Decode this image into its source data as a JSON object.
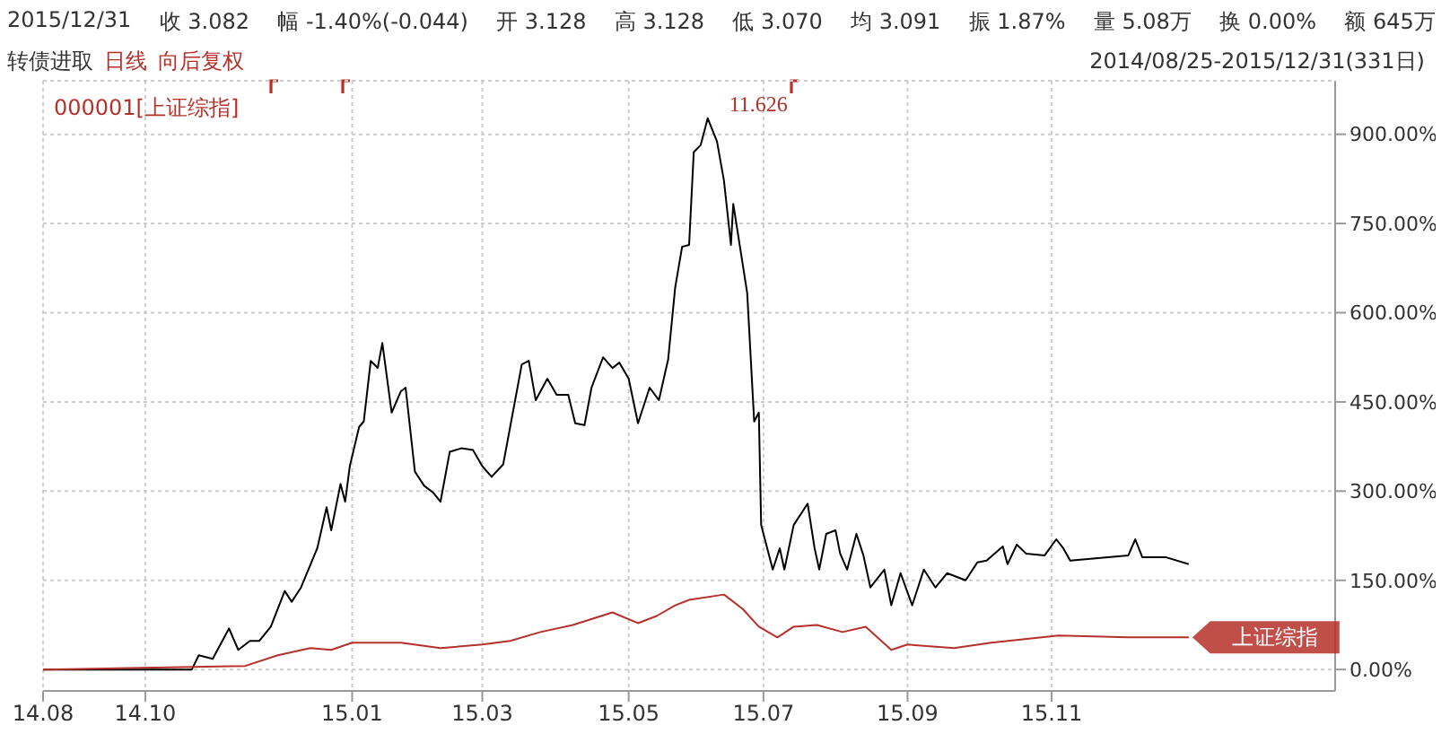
{
  "chart_data": {
    "type": "line",
    "annotations": [
      "2015/12/31",
      "收 3.082",
      "幅 -1.40%(-0.044)",
      "开 3.128",
      "高 3.128",
      "低 3.070",
      "均 3.091",
      "振 1.87%",
      "量 5.08万",
      "换 0.00%",
      "额 645万",
      "转债进取",
      "日线",
      "向后复权",
      "2014/08/25-2015/12/31(331日)",
      "000001[上证综指]",
      {
        "text": "11.626",
        "x": "2015-06-07",
        "y": 927
      }
    ],
    "xlim": [
      "2014-08-25",
      "2016-03-03"
    ],
    "xticks": [
      {
        "value": "2014-08-25",
        "label": "14.08"
      },
      {
        "value": "2014-10-08",
        "label": "14.10"
      },
      {
        "value": "2015-01-05",
        "label": "15.01"
      },
      {
        "value": "2015-03-02",
        "label": "15.03"
      },
      {
        "value": "2015-05-04",
        "label": "15.05"
      },
      {
        "value": "2015-07-01",
        "label": "15.07"
      },
      {
        "value": "2015-09-01",
        "label": "15.09"
      },
      {
        "value": "2015-11-02",
        "label": "15.11"
      }
    ],
    "ylim": [
      -36,
      990
    ],
    "yticks": [
      {
        "value": 0,
        "label": "0.00%"
      },
      {
        "value": 150,
        "label": "150.00%"
      },
      {
        "value": 300,
        "label": "300.00%"
      },
      {
        "value": 450,
        "label": "450.00%"
      },
      {
        "value": 600,
        "label": "600.00%"
      },
      {
        "value": 750,
        "label": "750.00%"
      },
      {
        "value": 900,
        "label": "900.00%"
      }
    ],
    "grid": true,
    "marker": "none",
    "line_style": "solid",
    "series": [
      {
        "color": "#000000",
        "x": [
          "2014-08-25",
          "2014-10-08",
          "2014-10-28",
          "2014-10-31",
          "2014-11-06",
          "2014-11-13",
          "2014-11-17",
          "2014-11-22",
          "2014-11-26",
          "2014-12-01",
          "2014-12-07",
          "2014-12-10",
          "2014-12-14",
          "2014-12-21",
          "2014-12-25",
          "2014-12-27",
          "2014-12-31",
          "2015-01-02",
          "2015-01-04",
          "2015-01-08",
          "2015-01-10",
          "2015-01-13",
          "2015-01-16",
          "2015-01-18",
          "2015-01-22",
          "2015-01-26",
          "2015-01-28",
          "2015-02-01",
          "2015-02-05",
          "2015-02-09",
          "2015-02-12",
          "2015-02-16",
          "2015-02-21",
          "2015-02-26",
          "2015-03-02",
          "2015-03-06",
          "2015-03-11",
          "2015-03-14",
          "2015-03-19",
          "2015-03-22",
          "2015-03-25",
          "2015-03-30",
          "2015-04-03",
          "2015-04-08",
          "2015-04-11",
          "2015-04-15",
          "2015-04-18",
          "2015-04-23",
          "2015-04-27",
          "2015-04-30",
          "2015-05-04",
          "2015-05-08",
          "2015-05-13",
          "2015-05-17",
          "2015-05-21",
          "2015-05-24",
          "2015-05-27",
          "2015-05-30",
          "2015-06-01",
          "2015-06-04",
          "2015-06-07",
          "2015-06-11",
          "2015-06-14",
          "2015-06-17",
          "2015-06-18",
          "2015-06-21",
          "2015-06-24",
          "2015-06-27",
          "2015-06-29",
          "2015-06-30",
          "2015-07-05",
          "2015-07-08",
          "2015-07-10",
          "2015-07-14",
          "2015-07-20",
          "2015-07-23",
          "2015-07-25",
          "2015-07-28",
          "2015-08-01",
          "2015-08-03",
          "2015-08-06",
          "2015-08-10",
          "2015-08-13",
          "2015-08-16",
          "2015-08-22",
          "2015-08-25",
          "2015-08-29",
          "2015-09-03",
          "2015-09-08",
          "2015-09-13",
          "2015-09-18",
          "2015-09-26",
          "2015-10-01",
          "2015-10-05",
          "2015-10-12",
          "2015-10-14",
          "2015-10-18",
          "2015-10-22",
          "2015-10-30",
          "2015-11-04",
          "2015-11-07",
          "2015-11-10",
          "2015-12-05",
          "2015-12-08",
          "2015-12-11",
          "2015-12-21",
          "2015-12-31"
        ],
        "values": [
          0,
          0,
          0,
          24,
          18,
          69,
          33,
          48,
          48,
          72,
          132,
          114,
          138,
          204,
          273,
          234,
          312,
          282,
          342,
          408,
          417,
          519,
          507,
          549,
          432,
          468,
          474,
          333,
          309,
          297,
          282,
          366,
          372,
          369,
          342,
          324,
          345,
          408,
          513,
          519,
          453,
          489,
          462,
          462,
          414,
          411,
          474,
          525,
          507,
          516,
          489,
          414,
          474,
          453,
          522,
          642,
          711,
          714,
          870,
          882,
          927,
          888,
          822,
          714,
          783,
          708,
          633,
          417,
          432,
          243,
          168,
          204,
          168,
          243,
          279,
          204,
          168,
          228,
          234,
          195,
          168,
          228,
          192,
          138,
          168,
          108,
          162,
          108,
          168,
          138,
          162,
          150,
          180,
          183,
          207,
          177,
          210,
          195,
          192,
          219,
          204,
          183,
          192,
          219,
          189,
          189,
          177
        ]
      },
      {
        "name": "上证综指",
        "color": "#b5302a",
        "x": [
          "2014-08-25",
          "2014-11-20",
          "2014-12-04",
          "2014-12-18",
          "2014-12-27",
          "2015-01-05",
          "2015-01-26",
          "2015-02-12",
          "2015-03-02",
          "2015-03-14",
          "2015-03-27",
          "2015-04-10",
          "2015-04-27",
          "2015-05-08",
          "2015-05-16",
          "2015-05-24",
          "2015-05-30",
          "2015-06-14",
          "2015-06-22",
          "2015-06-29",
          "2015-07-07",
          "2015-07-14",
          "2015-07-24",
          "2015-08-04",
          "2015-08-14",
          "2015-08-25",
          "2015-09-01",
          "2015-09-21",
          "2015-10-07",
          "2015-11-05",
          "2015-12-05",
          "2015-12-31"
        ],
        "values": [
          0,
          6,
          24,
          36,
          33,
          45,
          45,
          36,
          42,
          48,
          63,
          75,
          96,
          78,
          90,
          108,
          117,
          126,
          102,
          72,
          54,
          72,
          75,
          63,
          72,
          33,
          42,
          36,
          45,
          57,
          54,
          54
        ]
      }
    ]
  }
}
